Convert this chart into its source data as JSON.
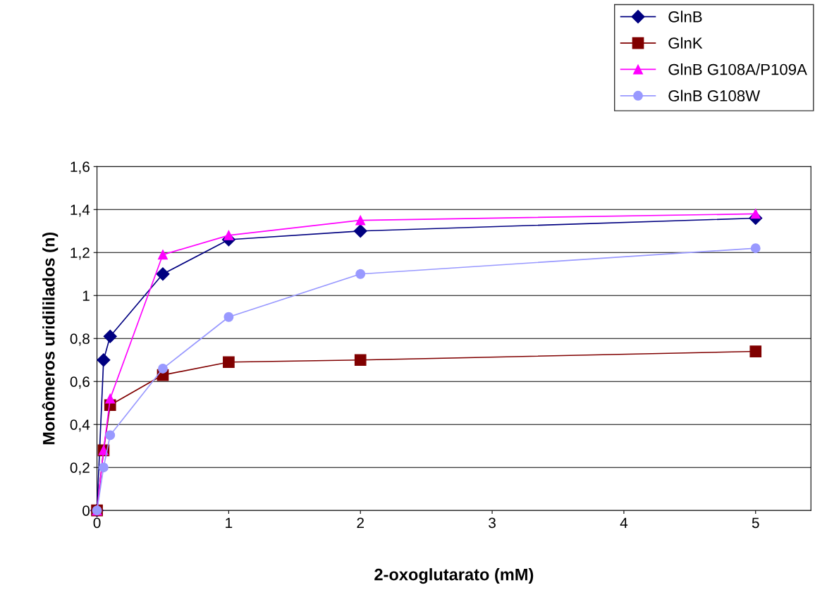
{
  "chart_data": {
    "type": "line",
    "xlabel": "2-oxoglutarato (mM)",
    "ylabel": "Monômeros uridililados (n)",
    "x": [
      0,
      0.05,
      0.1,
      0.5,
      1,
      2,
      5
    ],
    "series": [
      {
        "name": "GlnB",
        "color": "#000080",
        "marker": "diamond",
        "values": [
          0,
          0.7,
          0.81,
          1.1,
          1.26,
          1.3,
          1.36
        ]
      },
      {
        "name": "GlnK",
        "color": "#800000",
        "marker": "square",
        "values": [
          0,
          0.28,
          0.49,
          0.63,
          0.69,
          0.7,
          0.74
        ]
      },
      {
        "name": "GlnB G108A/P109A",
        "color": "#ff00ff",
        "marker": "triangle",
        "values": [
          0,
          0.28,
          0.52,
          1.19,
          1.28,
          1.35,
          1.38
        ]
      },
      {
        "name": "GlnB G108W",
        "color": "#9999ff",
        "marker": "circle",
        "values": [
          0,
          0.2,
          0.35,
          0.66,
          0.9,
          1.1,
          1.22
        ]
      }
    ],
    "xlim": [
      0,
      5.42
    ],
    "xticks": [
      0,
      1,
      2,
      3,
      4,
      5
    ],
    "ylim": [
      0,
      1.6
    ],
    "yticks": [
      0,
      {
        "value": 0.2,
        "label": "0,2"
      },
      {
        "value": 0.4,
        "label": "0,4"
      },
      {
        "value": 0.6,
        "label": "0,6"
      },
      {
        "value": 0.8,
        "label": "0,8"
      },
      1,
      {
        "value": 1.2,
        "label": "1,2"
      },
      {
        "value": 1.4,
        "label": "1,4"
      },
      {
        "value": 1.6,
        "label": "1,6"
      }
    ],
    "grid": "y",
    "legend": "top right"
  }
}
